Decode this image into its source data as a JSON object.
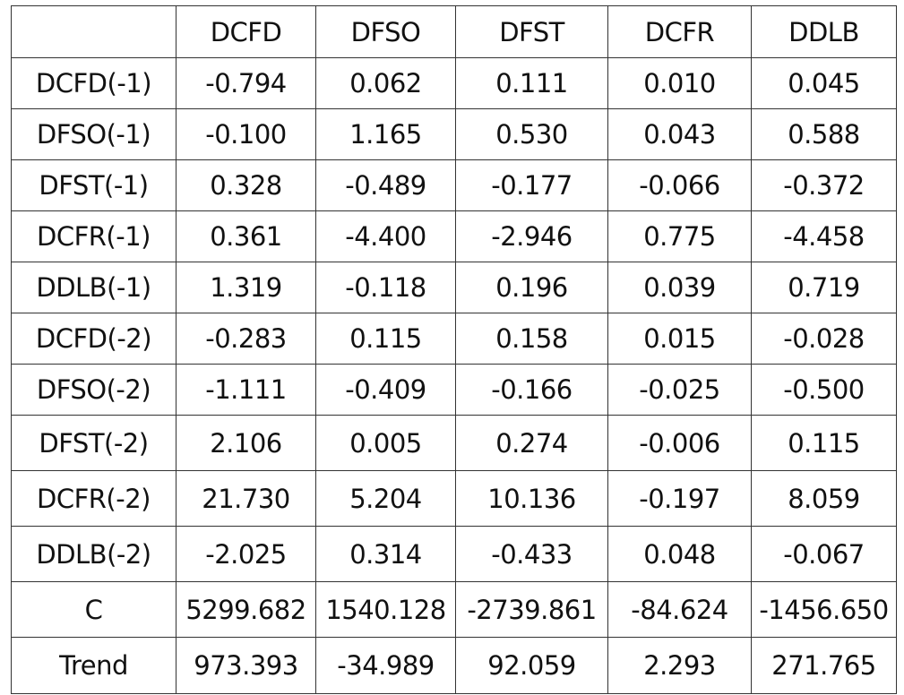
{
  "table": {
    "columns": [
      "",
      "DCFD",
      "DFSO",
      "DFST",
      "DCFR",
      "DDLB"
    ],
    "rows": [
      {
        "label": "DCFD(-1)",
        "values": [
          "-0.794",
          "0.062",
          "0.111",
          "0.010",
          "0.045"
        ]
      },
      {
        "label": "DFSO(-1)",
        "values": [
          "-0.100",
          "1.165",
          "0.530",
          "0.043",
          "0.588"
        ]
      },
      {
        "label": "DFST(-1)",
        "values": [
          "0.328",
          "-0.489",
          "-0.177",
          "-0.066",
          "-0.372"
        ]
      },
      {
        "label": "DCFR(-1)",
        "values": [
          "0.361",
          "-4.400",
          "-2.946",
          "0.775",
          "-4.458"
        ]
      },
      {
        "label": "DDLB(-1)",
        "values": [
          "1.319",
          "-0.118",
          "0.196",
          "0.039",
          "0.719"
        ]
      },
      {
        "label": "DCFD(-2)",
        "values": [
          "-0.283",
          "0.115",
          "0.158",
          "0.015",
          "-0.028"
        ]
      },
      {
        "label": "DFSO(-2)",
        "values": [
          "-1.111",
          "-0.409",
          "-0.166",
          "-0.025",
          "-0.500"
        ]
      },
      {
        "label": "DFST(-2)",
        "values": [
          "2.106",
          "0.005",
          "0.274",
          "-0.006",
          "0.115"
        ]
      },
      {
        "label": "DCFR(-2)",
        "values": [
          "21.730",
          "5.204",
          "10.136",
          "-0.197",
          "8.059"
        ]
      },
      {
        "label": "DDLB(-2)",
        "values": [
          "-2.025",
          "0.314",
          "-0.433",
          "0.048",
          "-0.067"
        ]
      },
      {
        "label": "C",
        "values": [
          "5299.682",
          "1540.128",
          "-2739.861",
          "-84.624",
          "-1456.650"
        ]
      },
      {
        "label": "Trend",
        "values": [
          "973.393",
          "-34.989",
          "92.059",
          "2.293",
          "271.765"
        ]
      }
    ]
  }
}
